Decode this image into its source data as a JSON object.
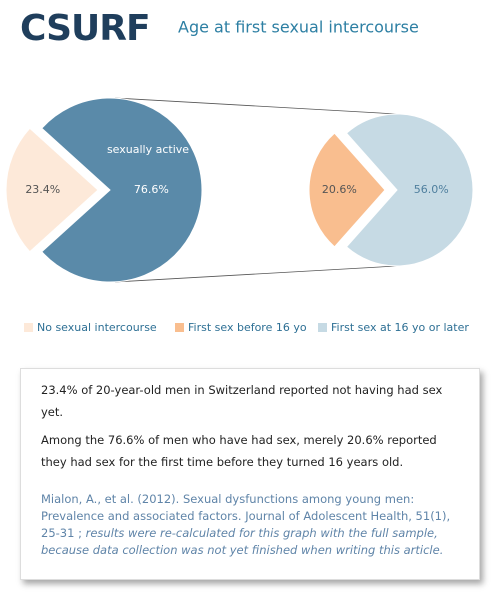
{
  "logo": "CSURF",
  "chart_data": {
    "type": "pie-of-pie",
    "title": "Age at first sexual intercourse",
    "main": {
      "categories": [
        "No sexual intercourse",
        "sexually active"
      ],
      "values": [
        23.4,
        76.6
      ],
      "value_labels": [
        "23.4%",
        "76.6%"
      ],
      "colors": [
        "#fde9d9",
        "#5a8aa9"
      ]
    },
    "sub": {
      "categories": [
        "First sex before 16 yo",
        "First sex at 16 yo or later"
      ],
      "values": [
        20.6,
        56.0
      ],
      "value_labels": [
        "20.6%",
        "56.0%"
      ],
      "colors": [
        "#f9be8f",
        "#c6dae4"
      ]
    }
  },
  "note": {
    "paragraphs": [
      "23.4% of 20-year-old men in Switzerland reported not having had sex yet.",
      " Among the 76.6% of men who have had sex, merely 20.6% reported they had sex for the first time before they turned 16 years old."
    ],
    "reference": "Mialon, A., et al. (2012). Sexual dysfunctions among young men: Prevalence and associated factors. Journal of Adolescent Health, 51(1), 25-31 ;",
    "reference_note": "results were re-calculated for this graph with the full sample, because data collection was not yet finished when writing this article."
  }
}
